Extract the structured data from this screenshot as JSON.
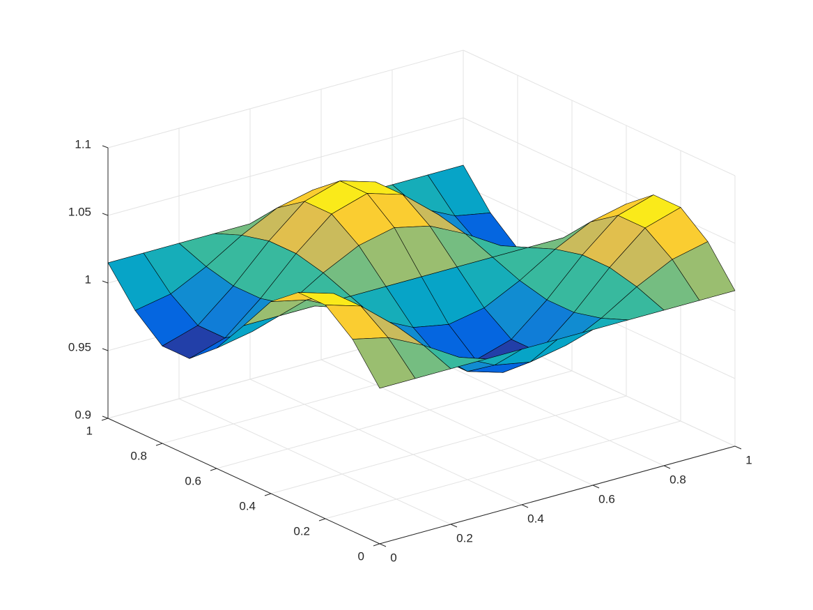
{
  "chart_data": {
    "type": "surface",
    "x": [
      0,
      0.1,
      0.2,
      0.3,
      0.4,
      0.5,
      0.6,
      0.7,
      0.8,
      0.9,
      1
    ],
    "y": [
      0,
      0.1,
      0.2,
      0.3,
      0.4,
      0.5,
      0.6,
      0.7,
      0.8,
      0.9,
      1
    ],
    "z": [
      [
        1.015,
        1.015,
        1.015,
        1.015,
        1.015,
        1.015,
        1.015,
        1.015,
        1.015,
        1.015,
        1.015
      ],
      [
        1.042,
        1.036,
        1.023,
        1.007,
        0.994,
        0.989,
        0.994,
        1.007,
        1.023,
        1.036,
        1.042
      ],
      [
        1.058,
        1.05,
        1.028,
        1.002,
        0.98,
        0.972,
        0.98,
        1.002,
        1.028,
        1.05,
        1.058
      ],
      [
        1.058,
        1.05,
        1.028,
        1.002,
        0.98,
        0.972,
        0.98,
        1.002,
        1.028,
        1.05,
        1.058
      ],
      [
        1.042,
        1.036,
        1.023,
        1.007,
        0.994,
        0.989,
        0.994,
        1.007,
        1.023,
        1.036,
        1.042
      ],
      [
        1.015,
        1.015,
        1.015,
        1.015,
        1.015,
        1.015,
        1.015,
        1.015,
        1.015,
        1.015,
        1.015
      ],
      [
        0.989,
        0.994,
        1.007,
        1.023,
        1.036,
        1.042,
        1.036,
        1.023,
        1.007,
        0.994,
        0.989
      ],
      [
        0.972,
        0.98,
        1.002,
        1.028,
        1.05,
        1.058,
        1.05,
        1.028,
        1.002,
        0.98,
        0.972
      ],
      [
        0.972,
        0.98,
        1.002,
        1.028,
        1.05,
        1.058,
        1.05,
        1.028,
        1.002,
        0.98,
        0.972
      ],
      [
        0.989,
        0.994,
        1.007,
        1.023,
        1.036,
        1.042,
        1.036,
        1.023,
        1.007,
        0.994,
        0.989
      ],
      [
        1.015,
        1.015,
        1.015,
        1.015,
        1.015,
        1.015,
        1.015,
        1.015,
        1.015,
        1.015,
        1.015
      ]
    ],
    "xlim": [
      0,
      1
    ],
    "ylim": [
      0,
      1
    ],
    "zlim": [
      0.9,
      1.1
    ],
    "xticks": [
      0,
      0.2,
      0.4,
      0.6,
      0.8,
      1
    ],
    "yticks": [
      0,
      0.2,
      0.4,
      0.6,
      0.8,
      1
    ],
    "zticks": [
      0.9,
      0.95,
      1,
      1.05,
      1.1
    ],
    "grid": true,
    "colormap": [
      "#352a87",
      "#0363e1",
      "#1485d4",
      "#06a7c6",
      "#38b99e",
      "#92bf73",
      "#d9ba56",
      "#fcce2e",
      "#f9fb0e"
    ],
    "edgecolor": "#000000"
  }
}
